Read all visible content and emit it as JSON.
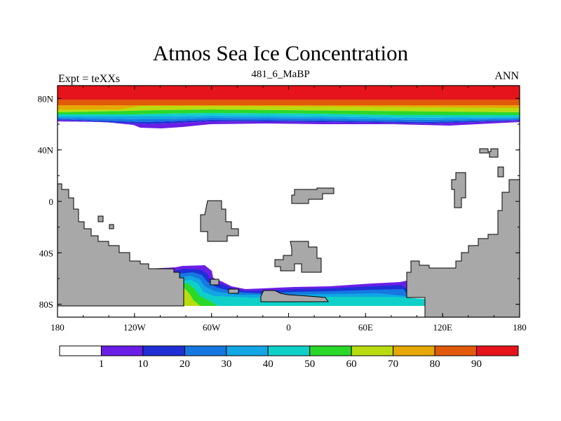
{
  "chart_data": {
    "type": "heatmap",
    "title": "Atmos Sea Ice Concentration",
    "subtitle": "481_6_MaBP",
    "left_label": "Expt = teXXs",
    "right_label": "ANN",
    "x_ticks": [
      "180",
      "120W",
      "60W",
      "0",
      "60E",
      "120E",
      "180"
    ],
    "y_ticks": [
      "80N",
      "40N",
      "0",
      "40S",
      "80S"
    ],
    "x_range_deg": [
      -180,
      180
    ],
    "y_range_deg": [
      -90,
      90
    ],
    "colorbar": {
      "levels": [
        "1",
        "10",
        "20",
        "30",
        "40",
        "50",
        "60",
        "70",
        "80",
        "90"
      ],
      "colors": [
        "#ffffff",
        "#6a1ee6",
        "#1f2fd6",
        "#1478e0",
        "#12a6e4",
        "#0fd0c8",
        "#2ad82a",
        "#b8dc10",
        "#e6a806",
        "#e05a0a",
        "#e6141a"
      ]
    },
    "sea_ice": {
      "arctic": "concentration 90-100 near pole, decreasing southward to ~60N, edge near 58N at 120W-100W",
      "antarctic": "concentration 1-70 around Antarctic margin between 100W and 110E"
    },
    "land_color": "#a8a8a8"
  }
}
